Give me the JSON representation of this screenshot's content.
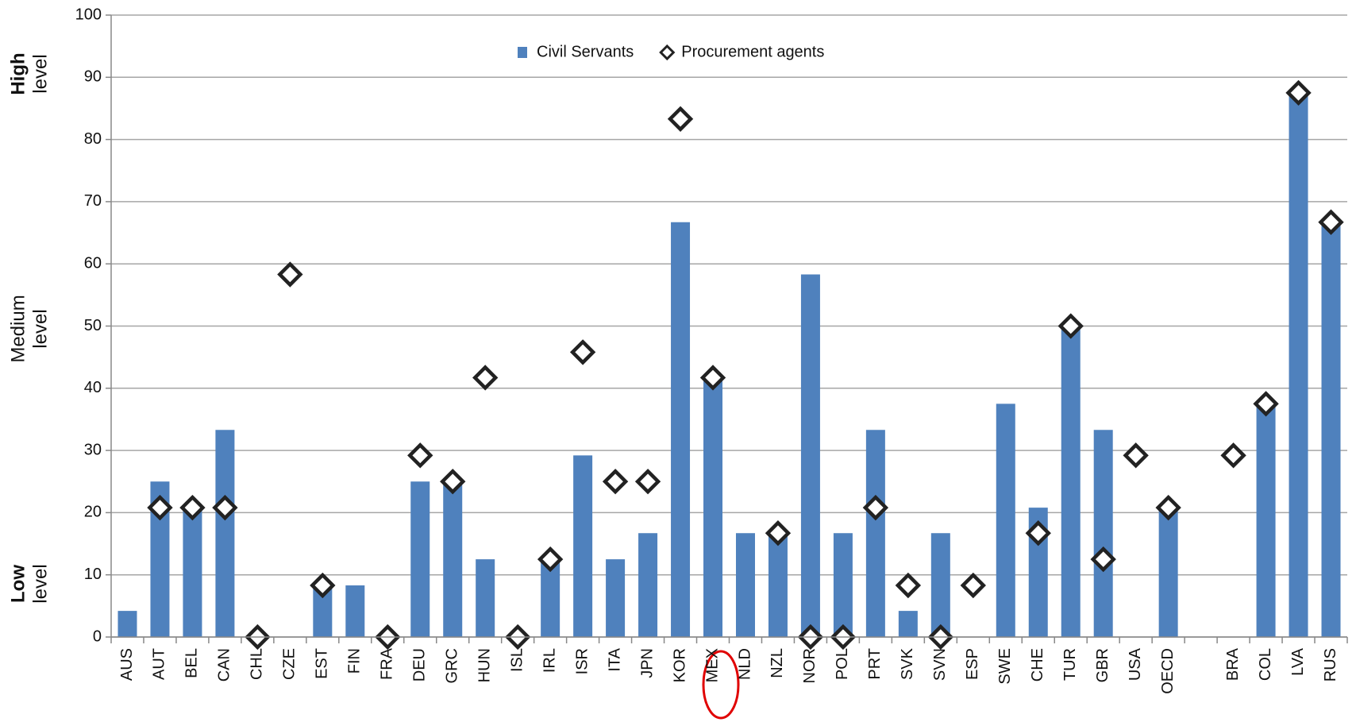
{
  "chart_data": {
    "type": "bar",
    "side_labels": [
      [
        "High",
        "level"
      ],
      [
        "Medium",
        "level"
      ],
      [
        "Low",
        "level"
      ]
    ],
    "categories": [
      "AUS",
      "AUT",
      "BEL",
      "CAN",
      "CHL",
      "CZE",
      "EST",
      "FIN",
      "FRA",
      "DEU",
      "GRC",
      "HUN",
      "ISL",
      "IRL",
      "ISR",
      "ITA",
      "JPN",
      "KOR",
      "MEX",
      "NLD",
      "NZL",
      "NOR",
      "POL",
      "PRT",
      "SVK",
      "SVN",
      "ESP",
      "SWE",
      "CHE",
      "TUR",
      "GBR",
      "USA",
      "OECD",
      null,
      "BRA",
      "COL",
      "LVA",
      "RUS"
    ],
    "series": [
      {
        "name": "Civil Servants",
        "color": "#4f81bd",
        "marker": "bar",
        "values": [
          4.2,
          25,
          20.8,
          33.3,
          null,
          null,
          8.3,
          8.3,
          null,
          25,
          25,
          12.5,
          null,
          12.5,
          29.2,
          12.5,
          16.7,
          66.7,
          41.7,
          16.7,
          16.7,
          58.3,
          16.7,
          33.3,
          4.2,
          16.7,
          null,
          37.5,
          20.8,
          50,
          33.3,
          null,
          20.8,
          null,
          null,
          37.5,
          87.5,
          66.7
        ]
      },
      {
        "name": "Procurement agents",
        "color": "#222222",
        "marker": "diamond",
        "values": [
          null,
          20.8,
          20.8,
          20.8,
          0,
          58.3,
          8.3,
          null,
          0,
          29.2,
          25,
          41.7,
          0,
          12.5,
          45.8,
          25,
          25,
          83.3,
          41.7,
          null,
          16.7,
          0,
          0,
          20.8,
          8.3,
          0,
          8.3,
          null,
          16.7,
          50,
          12.5,
          29.2,
          20.8,
          null,
          29.2,
          37.5,
          87.5,
          66.7
        ]
      }
    ],
    "ylim": [
      0,
      100
    ],
    "yticks": [
      0,
      10,
      20,
      30,
      40,
      50,
      60,
      70,
      80,
      90,
      100
    ],
    "grid": true
  }
}
